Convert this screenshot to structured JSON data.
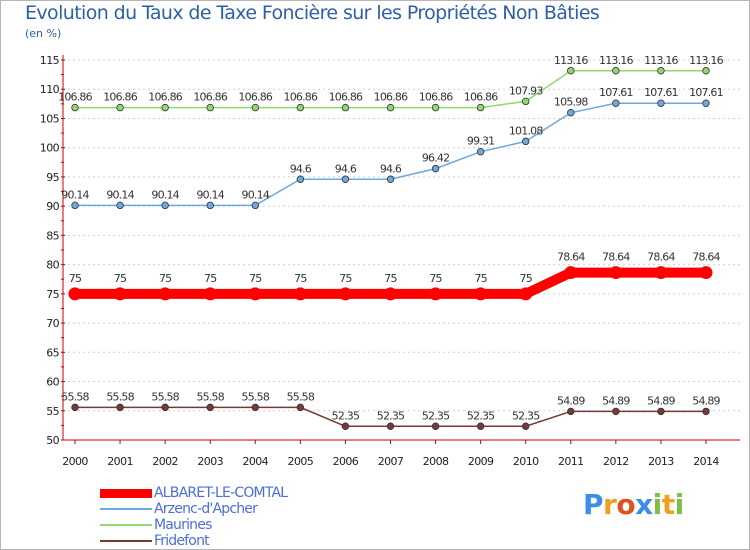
{
  "title": "Evolution du Taux de Taxe Foncière sur les Propriétés Non Bâties",
  "subtitle": "(en %)",
  "chart_data": {
    "type": "line",
    "title": "Evolution du Taux de Taxe Foncière sur les Propriétés Non Bâties",
    "ylabel": "(en %)",
    "xlabel": "",
    "ylim": [
      50,
      115
    ],
    "yticks": [
      50,
      55,
      60,
      65,
      70,
      75,
      80,
      85,
      90,
      95,
      100,
      105,
      110,
      115
    ],
    "categories": [
      "2000",
      "2001",
      "2002",
      "2003",
      "2004",
      "2005",
      "2006",
      "2007",
      "2008",
      "2009",
      "2010",
      "2011",
      "2012",
      "2013",
      "2014"
    ],
    "series": [
      {
        "name": "ALBARET-LE-COMTAL",
        "color": "#ff0000",
        "emphasis": true,
        "values": [
          75,
          75,
          75,
          75,
          75,
          75,
          75,
          75,
          75,
          75,
          75,
          78.64,
          78.64,
          78.64,
          78.64
        ],
        "labels": [
          "75",
          "75",
          "75",
          "75",
          "75",
          "75",
          "75",
          "75",
          "75",
          "75",
          "75",
          "78.64",
          "78.64",
          "78.64",
          "78.64"
        ]
      },
      {
        "name": "Arzenc-d'Apcher",
        "color": "#6fa8dc",
        "values": [
          90.14,
          90.14,
          90.14,
          90.14,
          90.14,
          94.6,
          94.6,
          94.6,
          96.42,
          99.31,
          101.08,
          105.98,
          107.61,
          107.61,
          107.61
        ],
        "labels": [
          "90.14",
          "90.14",
          "90.14",
          "90.14",
          "90.14",
          "94.6",
          "94.6",
          "94.6",
          "96.42",
          "99.31",
          "101.08",
          "105.98",
          "107.61",
          "107.61",
          "107.61"
        ]
      },
      {
        "name": "Maurines",
        "color": "#93d86f",
        "values": [
          106.86,
          106.86,
          106.86,
          106.86,
          106.86,
          106.86,
          106.86,
          106.86,
          106.86,
          106.86,
          107.93,
          113.16,
          113.16,
          113.16,
          113.16
        ],
        "labels": [
          "106.86",
          "106.86",
          "106.86",
          "106.86",
          "106.86",
          "106.86",
          "106.86",
          "106.86",
          "106.86",
          "106.86",
          "107.93",
          "113.16",
          "113.16",
          "113.16",
          "113.16"
        ]
      },
      {
        "name": "Fridefont",
        "color": "#7a3838",
        "values": [
          55.58,
          55.58,
          55.58,
          55.58,
          55.58,
          55.58,
          52.35,
          52.35,
          52.35,
          52.35,
          52.35,
          54.89,
          54.89,
          54.89,
          54.89
        ],
        "labels": [
          "55.58",
          "55.58",
          "55.58",
          "55.58",
          "55.58",
          "55.58",
          "52.35",
          "52.35",
          "52.35",
          "52.35",
          "52.35",
          "54.89",
          "54.89",
          "54.89",
          "54.89"
        ]
      }
    ],
    "grid": "horizontal-dotted",
    "legend": "bottom-left"
  },
  "legend": {
    "items": [
      {
        "label": "ALBARET-LE-COMTAL",
        "color": "#ff0000"
      },
      {
        "label": "Arzenc-d'Apcher",
        "color": "#6fa8dc"
      },
      {
        "label": "Maurines",
        "color": "#93d86f"
      },
      {
        "label": "Fridefont",
        "color": "#7a3838"
      }
    ]
  },
  "logo": {
    "letters": [
      "P",
      "r",
      "o",
      "x",
      "i",
      "t",
      "i"
    ],
    "colors": [
      "#3a8ee6",
      "#f0a020",
      "#e05020",
      "#3a8ee6",
      "#7bc043",
      "#f0a020",
      "#7bc043"
    ]
  }
}
